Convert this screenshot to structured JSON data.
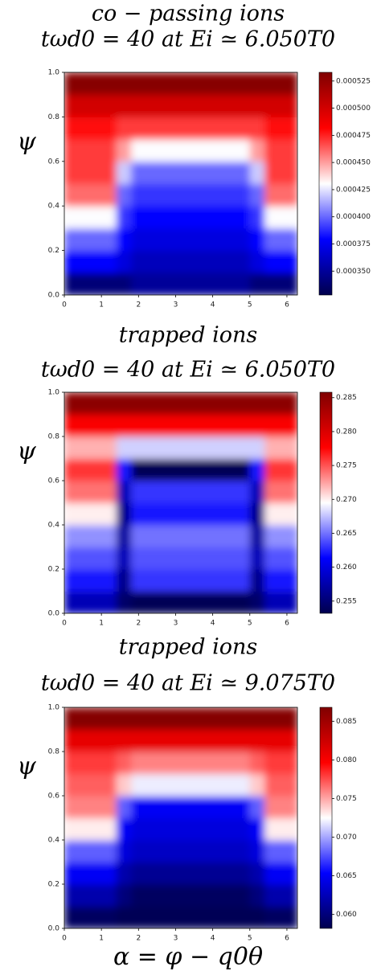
{
  "chart_data": [
    {
      "type": "heatmap",
      "title": "co − passing ions",
      "subtitle": "tωd0 = 40 at Ei ≃ 6.050T0",
      "ylabel": "ψ",
      "colormap": "seismic",
      "xbins": [
        0,
        0.8,
        1.4,
        1.8,
        2.6,
        3.4,
        4.2,
        5.0,
        5.4,
        6.283
      ],
      "ybins": [
        0,
        0.1,
        0.2,
        0.3,
        0.4,
        0.5,
        0.6,
        0.7,
        0.8,
        0.9,
        1.0
      ],
      "xlim": [
        0,
        6.283
      ],
      "ylim": [
        0,
        1
      ],
      "xticks": [
        0,
        1,
        2,
        3,
        4,
        5,
        6
      ],
      "yticks": [
        {
          "value": 0,
          "label": "0.0"
        },
        {
          "value": 0.2,
          "label": "0.2"
        },
        {
          "value": 0.4,
          "label": "0.4"
        },
        {
          "value": 0.6,
          "label": "0.6"
        },
        {
          "value": 0.8,
          "label": "0.8"
        },
        {
          "value": 1,
          "label": "1.0"
        }
      ],
      "zlim": [
        0.000328,
        0.000533
      ],
      "zticks": [
        {
          "value": 0.00035,
          "label": "0.000350"
        },
        {
          "value": 0.000375,
          "label": "0.000375"
        },
        {
          "value": 0.0004,
          "label": "0.000400"
        },
        {
          "value": 0.000425,
          "label": "0.000425"
        },
        {
          "value": 0.00045,
          "label": "0.000450"
        },
        {
          "value": 0.000475,
          "label": "0.000475"
        },
        {
          "value": 0.0005,
          "label": "0.000500"
        },
        {
          "value": 0.000525,
          "label": "0.000525"
        }
      ],
      "z": [
        [
          0.00034,
          0.00034,
          0.00034,
          0.00035,
          0.00035,
          0.00035,
          0.00035,
          0.00034,
          0.00034
        ],
        [
          0.00038,
          0.00038,
          0.00037,
          0.00036,
          0.00036,
          0.00036,
          0.00036,
          0.00037,
          0.00038
        ],
        [
          0.0004,
          0.0004,
          0.00038,
          0.00037,
          0.00037,
          0.00037,
          0.00037,
          0.00038,
          0.0004
        ],
        [
          0.00043,
          0.00043,
          0.00039,
          0.00038,
          0.00038,
          0.00038,
          0.00038,
          0.00039,
          0.00043
        ],
        [
          0.00046,
          0.00046,
          0.0004,
          0.00039,
          0.00039,
          0.00039,
          0.00039,
          0.0004,
          0.00046
        ],
        [
          0.00047,
          0.00047,
          0.00042,
          0.0004,
          0.0004,
          0.0004,
          0.0004,
          0.00042,
          0.00047
        ],
        [
          0.00047,
          0.00047,
          0.00045,
          0.00043,
          0.00043,
          0.00043,
          0.00043,
          0.00045,
          0.00047
        ],
        [
          0.00048,
          0.00048,
          0.00047,
          0.00047,
          0.00047,
          0.00047,
          0.00047,
          0.00047,
          0.00048
        ],
        [
          0.0005,
          0.0005,
          0.0005,
          0.0005,
          0.0005,
          0.0005,
          0.0005,
          0.0005,
          0.0005
        ],
        [
          0.00053,
          0.00053,
          0.00053,
          0.00053,
          0.00053,
          0.00053,
          0.00053,
          0.00053,
          0.00053
        ]
      ]
    },
    {
      "type": "heatmap",
      "title": "trapped ions",
      "subtitle": "tωd0 = 40 at Ei ≃ 6.050T0",
      "ylabel": "ψ",
      "colormap": "seismic",
      "xbins": [
        0,
        0.8,
        1.4,
        1.8,
        2.6,
        3.4,
        4.2,
        5.0,
        5.4,
        6.283
      ],
      "ybins": [
        0,
        0.1,
        0.2,
        0.3,
        0.4,
        0.5,
        0.6,
        0.7,
        0.8,
        0.9,
        1.0
      ],
      "xlim": [
        0,
        6.283
      ],
      "ylim": [
        0,
        1
      ],
      "xticks": [
        0,
        1,
        2,
        3,
        4,
        5,
        6
      ],
      "yticks": [
        {
          "value": 0,
          "label": "0.0"
        },
        {
          "value": 0.2,
          "label": "0.2"
        },
        {
          "value": 0.4,
          "label": "0.4"
        },
        {
          "value": 0.6,
          "label": "0.6"
        },
        {
          "value": 0.8,
          "label": "0.8"
        },
        {
          "value": 1,
          "label": "1.0"
        }
      ],
      "zlim": [
        0.2532,
        0.2858
      ],
      "zticks": [
        0.255,
        {
          "value": 0.26,
          "label": "0.260"
        },
        0.265,
        {
          "value": 0.27,
          "label": "0.270"
        },
        0.275,
        {
          "value": 0.28,
          "label": "0.280"
        },
        0.285
      ],
      "z": [
        [
          0.258,
          0.258,
          0.2545,
          0.2535,
          0.2535,
          0.2535,
          0.2535,
          0.2545,
          0.258
        ],
        [
          0.262,
          0.262,
          0.256,
          0.263,
          0.263,
          0.263,
          0.263,
          0.256,
          0.262
        ],
        [
          0.264,
          0.264,
          0.258,
          0.264,
          0.264,
          0.264,
          0.264,
          0.258,
          0.264
        ],
        [
          0.266,
          0.266,
          0.257,
          0.265,
          0.265,
          0.265,
          0.265,
          0.257,
          0.266
        ],
        [
          0.27,
          0.27,
          0.256,
          0.262,
          0.262,
          0.262,
          0.262,
          0.256,
          0.27
        ],
        [
          0.274,
          0.274,
          0.258,
          0.263,
          0.263,
          0.263,
          0.263,
          0.258,
          0.274
        ],
        [
          0.276,
          0.276,
          0.262,
          0.2535,
          0.2535,
          0.2535,
          0.2535,
          0.262,
          0.276
        ],
        [
          0.272,
          0.272,
          0.268,
          0.268,
          0.268,
          0.268,
          0.268,
          0.268,
          0.272
        ],
        [
          0.278,
          0.278,
          0.278,
          0.278,
          0.278,
          0.278,
          0.278,
          0.278,
          0.278
        ],
        [
          0.285,
          0.285,
          0.285,
          0.285,
          0.285,
          0.285,
          0.285,
          0.285,
          0.285
        ]
      ]
    },
    {
      "type": "heatmap",
      "title": "trapped ions",
      "subtitle": "tωd0 = 40 at Ei ≃ 9.075T0",
      "ylabel": "ψ",
      "xlabel": "α = φ − q0θ",
      "colormap": "seismic",
      "xbins": [
        0,
        0.8,
        1.4,
        1.8,
        2.6,
        3.4,
        4.2,
        5.0,
        5.4,
        6.283
      ],
      "ybins": [
        0,
        0.1,
        0.2,
        0.3,
        0.4,
        0.5,
        0.6,
        0.7,
        0.8,
        0.9,
        1.0
      ],
      "xlim": [
        0,
        6.283
      ],
      "ylim": [
        0,
        1
      ],
      "xticks": [
        0,
        1,
        2,
        3,
        4,
        5,
        6
      ],
      "yticks": [
        {
          "value": 0,
          "label": "0.0"
        },
        {
          "value": 0.2,
          "label": "0.2"
        },
        {
          "value": 0.4,
          "label": "0.4"
        },
        {
          "value": 0.6,
          "label": "0.6"
        },
        {
          "value": 0.8,
          "label": "0.8"
        },
        {
          "value": 1,
          "label": "1.0"
        }
      ],
      "zlim": [
        0.0582,
        0.0868
      ],
      "zticks": [
        {
          "value": 0.06,
          "label": "0.060"
        },
        0.065,
        {
          "value": 0.07,
          "label": "0.070"
        },
        0.075,
        {
          "value": 0.08,
          "label": "0.080"
        },
        0.085
      ],
      "z": [
        [
          0.059,
          0.059,
          0.0585,
          0.0585,
          0.0585,
          0.0585,
          0.0585,
          0.0585,
          0.059
        ],
        [
          0.062,
          0.062,
          0.06,
          0.059,
          0.059,
          0.059,
          0.059,
          0.06,
          0.062
        ],
        [
          0.065,
          0.065,
          0.062,
          0.061,
          0.061,
          0.061,
          0.061,
          0.062,
          0.065
        ],
        [
          0.068,
          0.068,
          0.064,
          0.063,
          0.063,
          0.063,
          0.063,
          0.064,
          0.068
        ],
        [
          0.073,
          0.073,
          0.065,
          0.064,
          0.064,
          0.064,
          0.064,
          0.065,
          0.073
        ],
        [
          0.076,
          0.076,
          0.068,
          0.065,
          0.065,
          0.065,
          0.065,
          0.068,
          0.076
        ],
        [
          0.077,
          0.077,
          0.074,
          0.072,
          0.072,
          0.072,
          0.072,
          0.074,
          0.077
        ],
        [
          0.078,
          0.078,
          0.077,
          0.076,
          0.076,
          0.076,
          0.076,
          0.077,
          0.078
        ],
        [
          0.081,
          0.081,
          0.081,
          0.081,
          0.081,
          0.081,
          0.081,
          0.081,
          0.081
        ],
        [
          0.0865,
          0.0865,
          0.0865,
          0.0865,
          0.0865,
          0.0865,
          0.0865,
          0.0865,
          0.0865
        ]
      ]
    }
  ]
}
